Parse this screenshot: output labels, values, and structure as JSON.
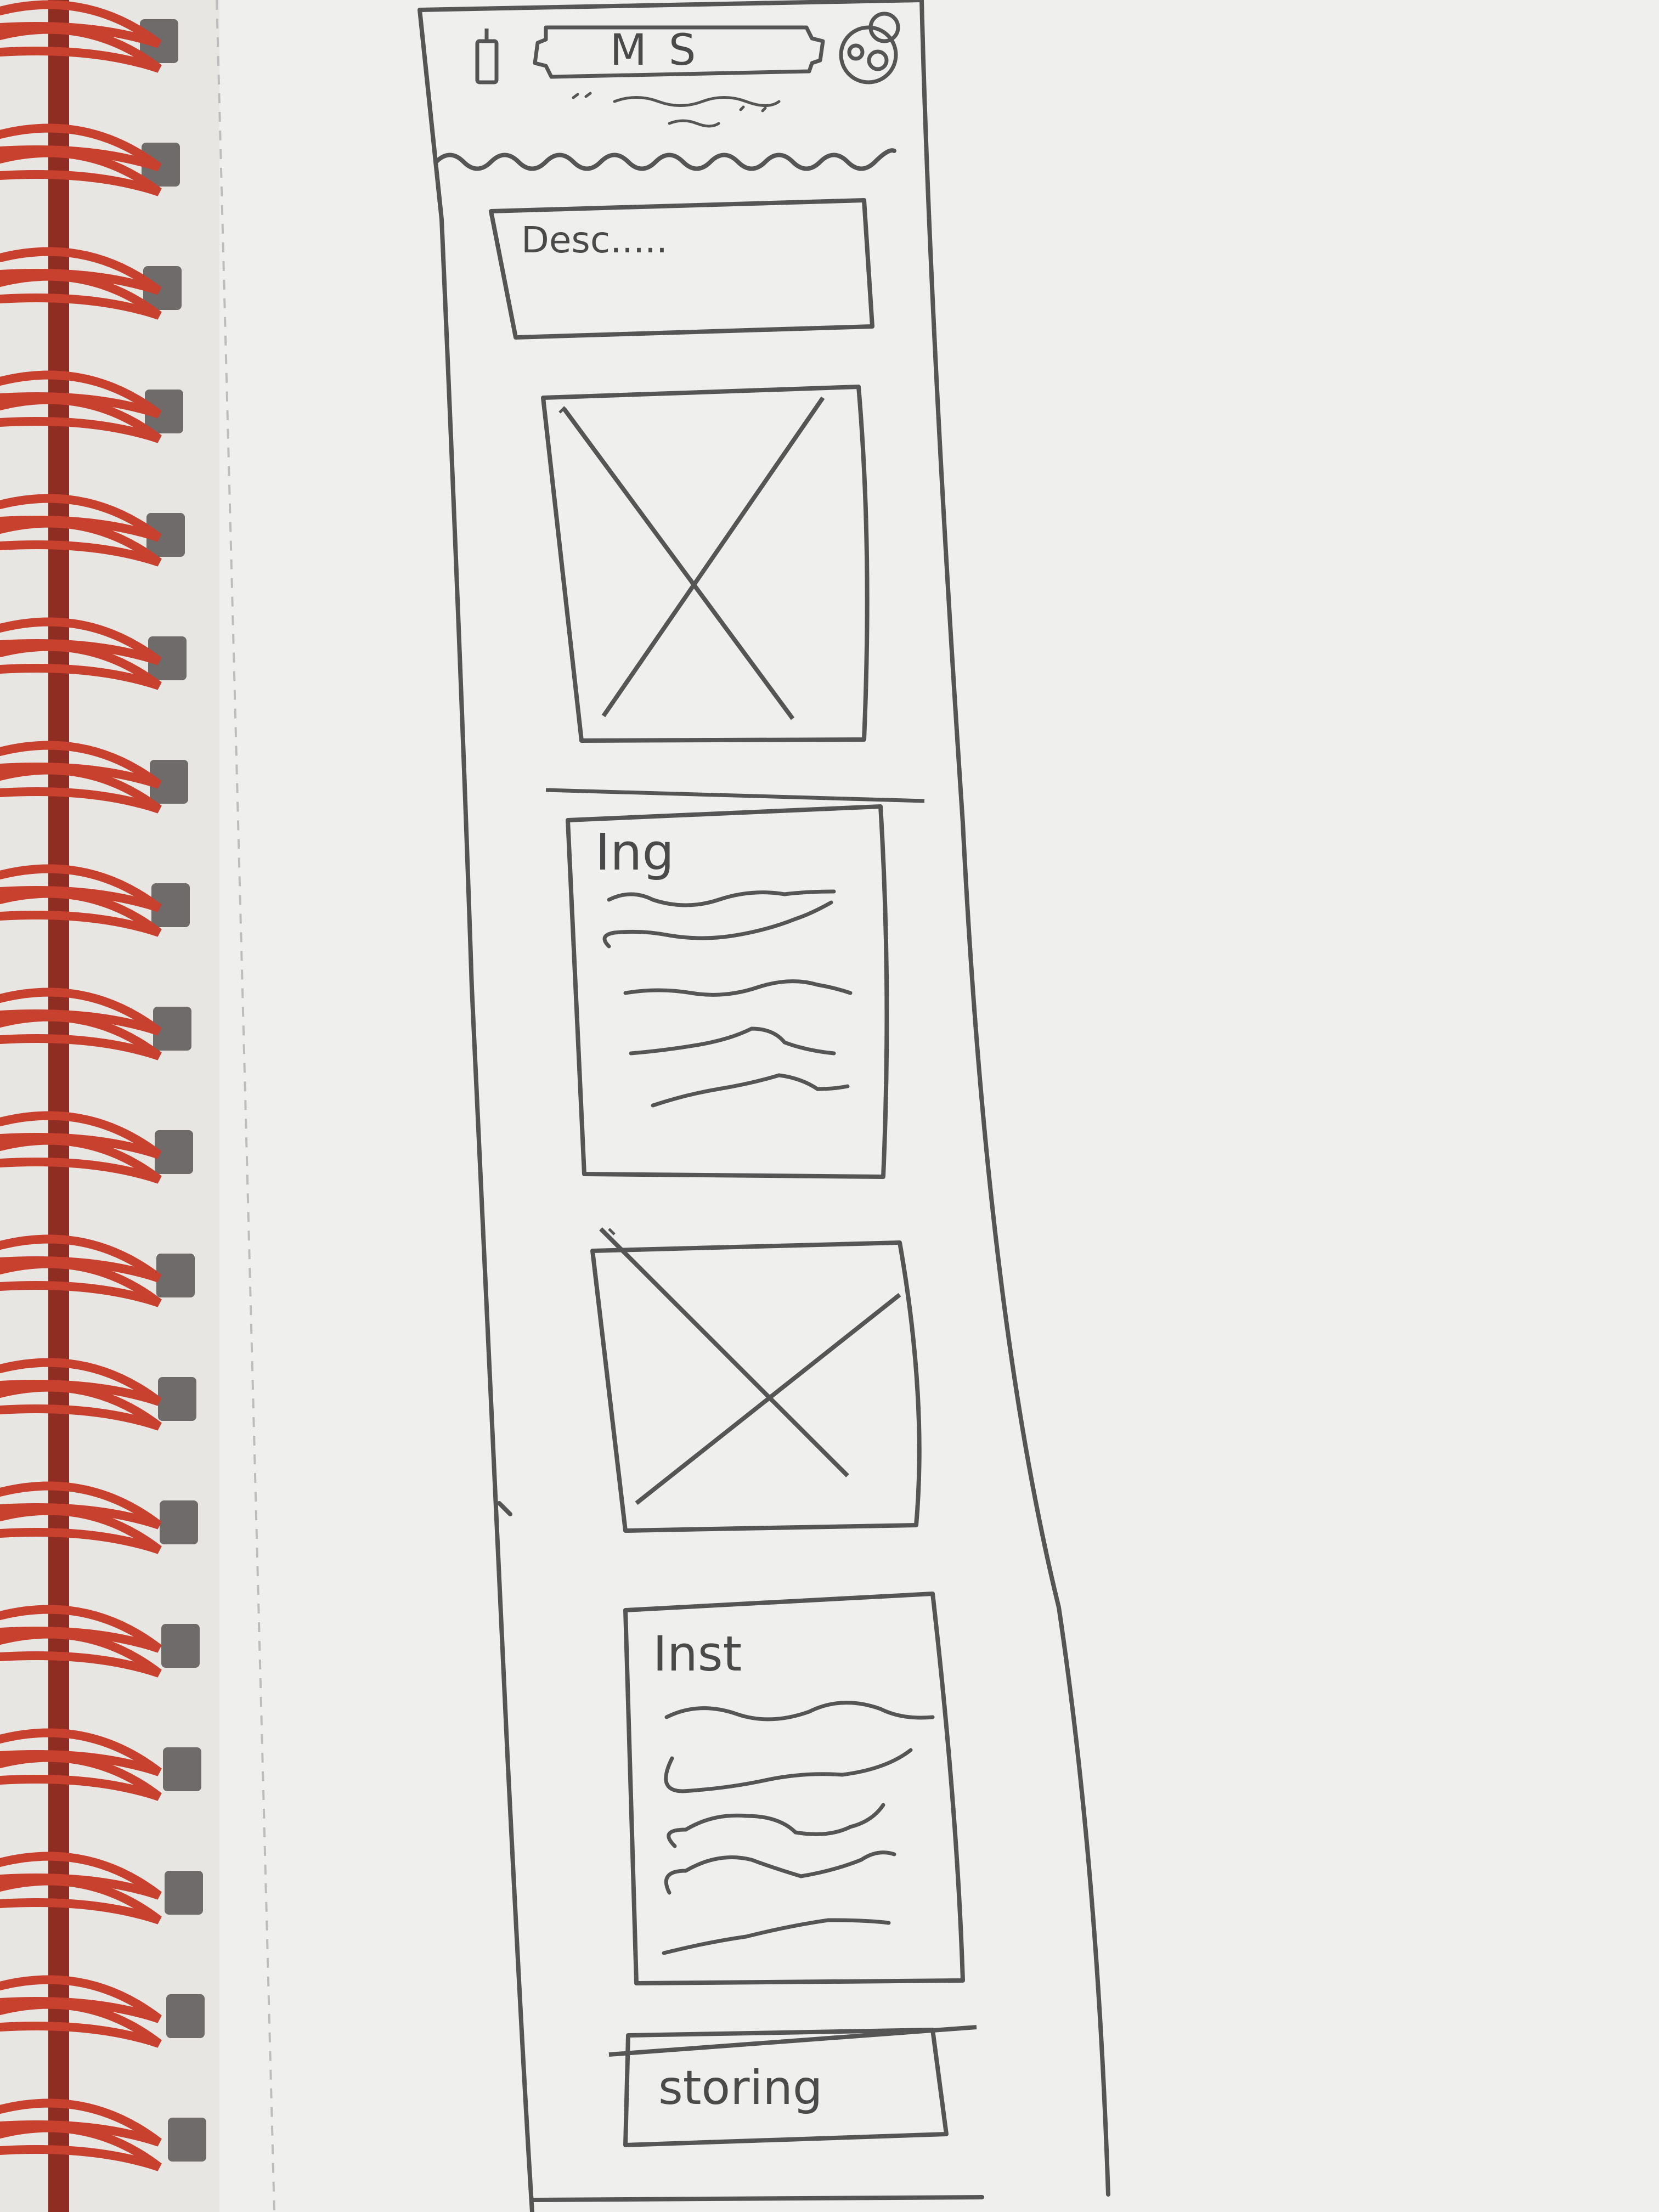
{
  "header": {
    "title": "MS"
  },
  "sections": [
    {
      "id": "description",
      "label": "Desc....."
    },
    {
      "id": "image-1",
      "label": ""
    },
    {
      "id": "ingredients",
      "label": "Ing"
    },
    {
      "id": "image-2",
      "label": ""
    },
    {
      "id": "instructions",
      "label": "Inst"
    },
    {
      "id": "storing",
      "label": "storing"
    }
  ],
  "colors": {
    "paper": "#efefed",
    "pencil": "#555555",
    "spiral": "#c8412e",
    "spine": "#8f2d22"
  },
  "icons": {
    "left_header_icon": "phone-icon",
    "right_header_icon": "avatar-icon"
  }
}
